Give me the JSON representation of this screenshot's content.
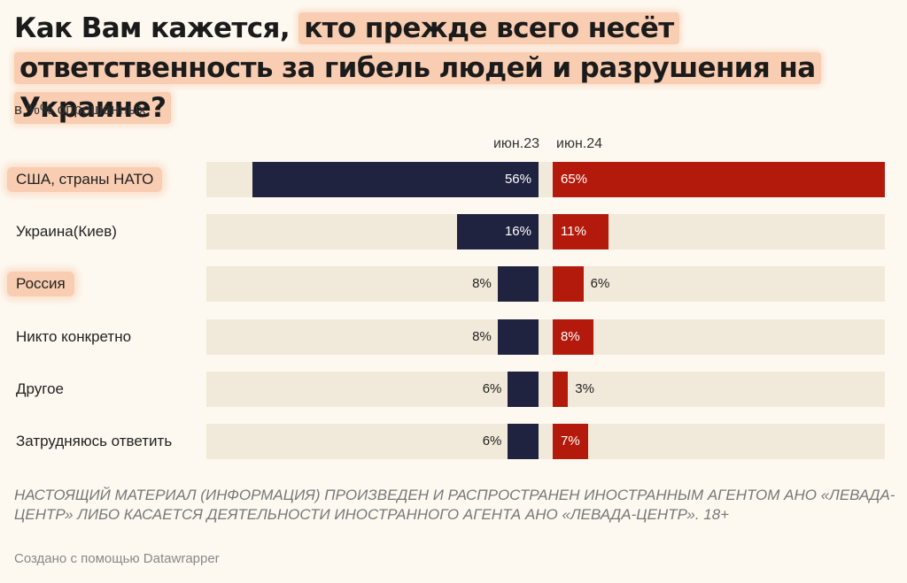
{
  "title_plain": "Как Вам кажется,",
  "title_highlight": "кто прежде всего несёт ответственность за гибель людей и разрушения на Украине?",
  "subtitle": "в %% опрошенных",
  "footnote": "НАСТОЯЩИЙ МАТЕРИАЛ (ИНФОРМАЦИЯ) ПРОИЗВЕДЕН И РАСПРОСТРАНЕН ИНОСТРАННЫМ АГЕНТОМ АНО «ЛЕВАДА-ЦЕНТР» ЛИБО КАСАЕТСЯ ДЕЯТЕЛЬНОСТИ ИНОСТРАННОГО АГЕНТА АНО «ЛЕВАДА-ЦЕНТР». 18+",
  "credit": "Создано с помощью Datawrapper",
  "colors": {
    "series1": "#1f2340",
    "series2": "#b31a0c",
    "highlight": "#f9cdb1",
    "row_bg": "#f1e9d9",
    "background": "#fdf9f1"
  },
  "highlighted_rows": [
    "США, страны НАТО",
    "Россия"
  ],
  "chart_data": {
    "type": "bar",
    "orientation": "horizontal-split",
    "unit": "%",
    "categories": [
      "США, страны НАТО",
      "Украина(Киев)",
      "Россия",
      "Никто конкретно",
      "Другое",
      "Затрудняюсь ответить"
    ],
    "series": [
      {
        "name": "июн.23",
        "values": [
          56,
          16,
          8,
          8,
          6,
          6
        ],
        "labels": [
          "56%",
          "16%",
          "8%",
          "8%",
          "6%",
          "6%"
        ]
      },
      {
        "name": "июн.24",
        "values": [
          65,
          11,
          6,
          8,
          3,
          7
        ],
        "labels": [
          "65%",
          "11%",
          "6%",
          "8%",
          "3%",
          "7%"
        ]
      }
    ],
    "xlim": [
      0,
      65
    ],
    "grid": false,
    "legend": "column headers"
  }
}
